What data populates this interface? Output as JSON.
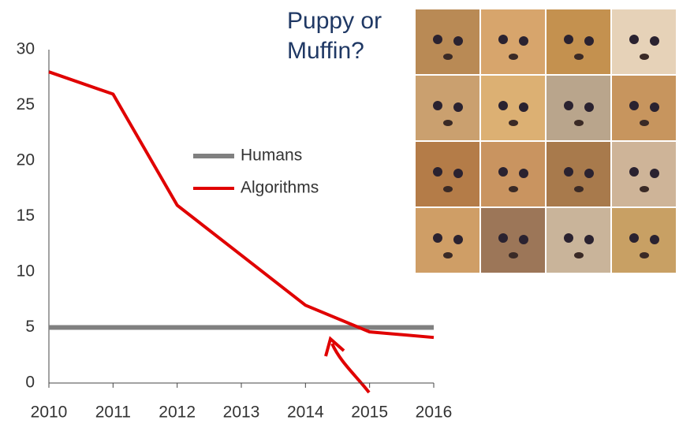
{
  "chart_data": {
    "type": "line",
    "title": "Puppy or Muffin?",
    "x": [
      2010,
      2011,
      2012,
      2013,
      2014,
      2015,
      2016
    ],
    "xlim": [
      2010,
      2016
    ],
    "xticks": [
      2010,
      2011,
      2012,
      2013,
      2014,
      2015,
      2016
    ],
    "ylim": [
      0,
      30
    ],
    "yticks": [
      0,
      5,
      10,
      15,
      20,
      25,
      30
    ],
    "grid": false,
    "legend": "upper-center",
    "series": [
      {
        "name": "Humans",
        "color": "#808080",
        "values": [
          5,
          5,
          5,
          5,
          5,
          5,
          5
        ]
      },
      {
        "name": "Algorithms",
        "color": "#e00000",
        "values": [
          28,
          26,
          16,
          11.5,
          7,
          4.6,
          4.1
        ]
      }
    ]
  }
}
